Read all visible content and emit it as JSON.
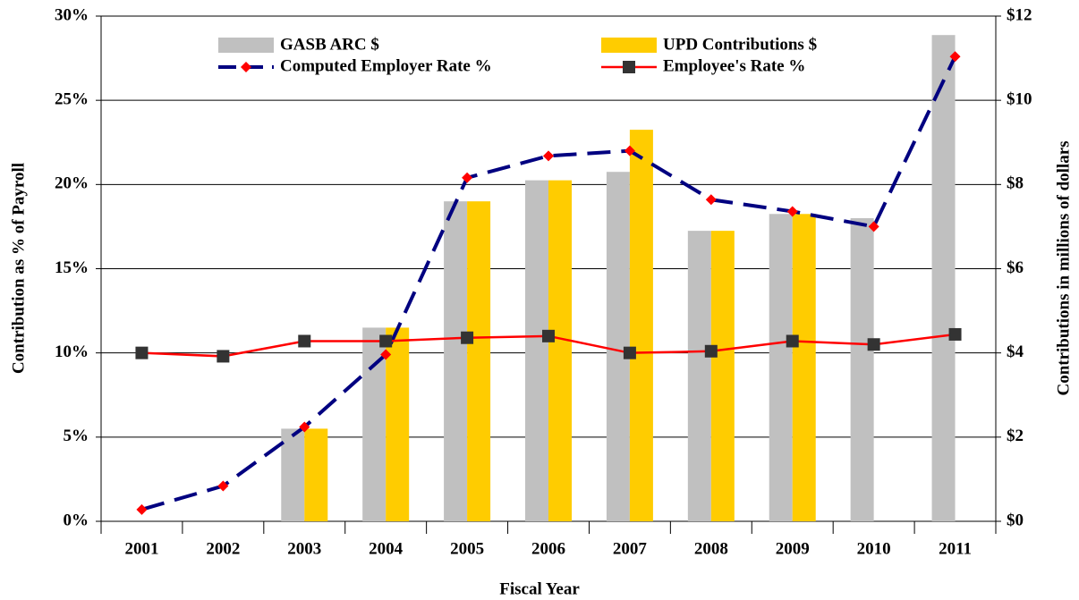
{
  "chart_data": {
    "type": "bar",
    "x_label": "Fiscal Year",
    "y_label": "Contribution as % of Payroll",
    "y2_label": "Contributions in millions of dollars",
    "categories": [
      "2001",
      "2002",
      "2003",
      "2004",
      "2005",
      "2006",
      "2007",
      "2008",
      "2009",
      "2010",
      "2011"
    ],
    "ylim": [
      0,
      30
    ],
    "yticks": [
      {
        "value": 0,
        "label": "0%"
      },
      {
        "value": 5,
        "label": "5%"
      },
      {
        "value": 10,
        "label": "10%"
      },
      {
        "value": 15,
        "label": "15%"
      },
      {
        "value": 20,
        "label": "20%"
      },
      {
        "value": 25,
        "label": "25%"
      },
      {
        "value": 30,
        "label": "30%"
      }
    ],
    "y2lim": [
      0,
      12
    ],
    "y2ticks": [
      {
        "value": 0,
        "label": "$0"
      },
      {
        "value": 2,
        "label": "$2"
      },
      {
        "value": 4,
        "label": "$4"
      },
      {
        "value": 6,
        "label": "$6"
      },
      {
        "value": 8,
        "label": "$8"
      },
      {
        "value": 10,
        "label": "$10"
      },
      {
        "value": 12,
        "label": "$12"
      }
    ],
    "grid": true,
    "series": [
      {
        "name": "GASB ARC $",
        "type": "bar",
        "axis": "y2",
        "color": "#c0c0c0",
        "values": [
          null,
          null,
          2.2,
          4.6,
          7.6,
          8.1,
          8.3,
          6.9,
          7.3,
          7.2,
          11.55
        ]
      },
      {
        "name": "UPD Contributions $",
        "type": "bar",
        "axis": "y2",
        "color": "#ffcc00",
        "values": [
          null,
          null,
          2.2,
          4.6,
          7.6,
          8.1,
          9.3,
          6.9,
          7.3,
          null,
          null
        ]
      },
      {
        "name": "Computed Employer Rate %",
        "type": "line",
        "color": "#000080",
        "marker_color": "#ff0000",
        "marker": "diamond",
        "dashed": true,
        "values": [
          0.7,
          2.1,
          5.6,
          9.9,
          20.4,
          21.7,
          22.0,
          19.1,
          18.4,
          17.5,
          27.6
        ]
      },
      {
        "name": "Employee's Rate %",
        "type": "line",
        "color": "#ff0000",
        "marker_color": "#333333",
        "marker": "square",
        "dashed": false,
        "values": [
          10.0,
          9.8,
          10.7,
          10.7,
          10.9,
          11.0,
          10.0,
          10.1,
          10.7,
          10.5,
          11.1
        ]
      }
    ]
  }
}
